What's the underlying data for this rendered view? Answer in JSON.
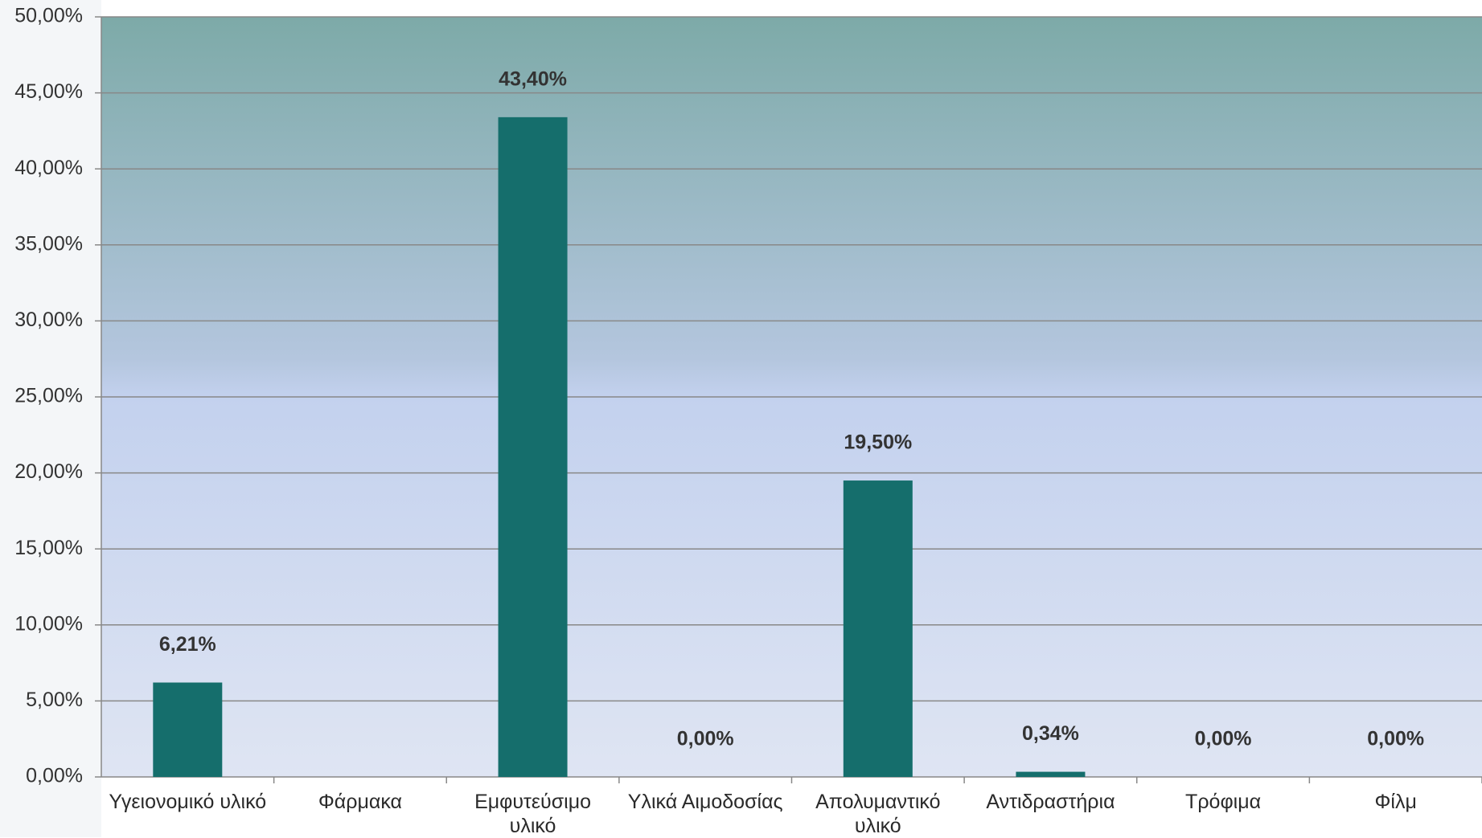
{
  "chart_data": {
    "type": "bar",
    "categories": [
      "Υγειονομικό υλικό",
      "Φάρμακα",
      "Εμφυτεύσιμο υλικό",
      "Υλικά Αιμοδοσίας",
      "Απολυμαντικό υλικό",
      "Αντιδραστήρια",
      "Τρόφιμα",
      "Φίλμ"
    ],
    "values": [
      6.21,
      null,
      43.4,
      0,
      19.5,
      0.34,
      0,
      0
    ],
    "value_labels": [
      "6,21%",
      null,
      "43,40%",
      "0,00%",
      "19,50%",
      "0,34%",
      "0,00%",
      "0,00%"
    ],
    "color": "#156e6c",
    "ylim": [
      0,
      50
    ],
    "yticks": [
      {
        "value": 0,
        "label": "0,00%"
      },
      {
        "value": 5,
        "label": "5,00%"
      },
      {
        "value": 10,
        "label": "10,00%"
      },
      {
        "value": 15,
        "label": "15,00%"
      },
      {
        "value": 20,
        "label": "20,00%"
      },
      {
        "value": 25,
        "label": "25,00%"
      },
      {
        "value": 30,
        "label": "30,00%"
      },
      {
        "value": 35,
        "label": "35,00%"
      },
      {
        "value": 40,
        "label": "40,00%"
      },
      {
        "value": 45,
        "label": "45,00%"
      },
      {
        "value": 50,
        "label": "50,00%"
      }
    ],
    "grid": true
  }
}
